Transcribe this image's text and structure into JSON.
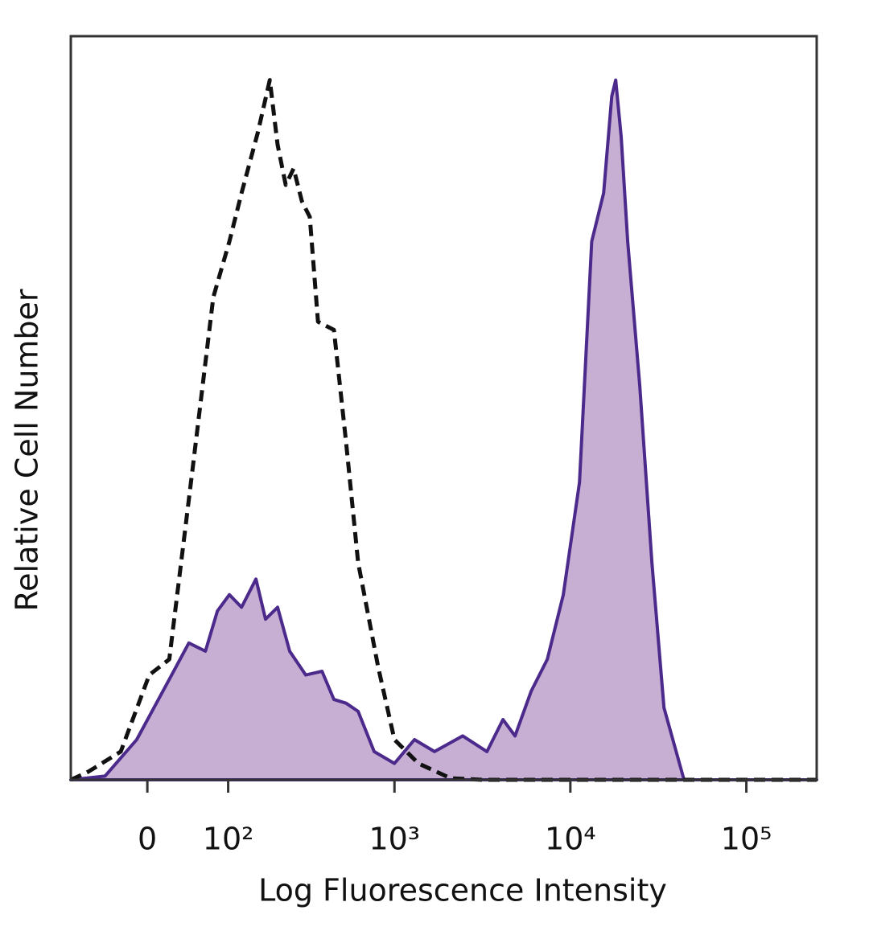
{
  "chart_data": {
    "type": "histogram-overlay",
    "x_label": "Log Fluorescence Intensity",
    "y_label": "Relative Cell Number",
    "xscale": "biexponential",
    "xlim": [
      -93,
      251000
    ],
    "ylim": [
      0,
      100
    ],
    "xticks": [
      0,
      {
        "value": 100,
        "label": "10²"
      },
      {
        "value": 1000,
        "label": "10³"
      },
      {
        "value": 10000,
        "label": "10⁴"
      },
      {
        "value": 100000,
        "label": "10⁵"
      }
    ],
    "series": [
      {
        "color": "#4b2a8c",
        "fill": "#c6afd3",
        "dash": false,
        "x": [
          -93,
          -46,
          -11,
          23,
          45,
          66,
          83,
          102,
          124,
          154,
          177,
          210,
          248,
          309,
          384,
          450,
          529,
          620,
          766,
          999,
          1300,
          1690,
          2447,
          3357,
          4140,
          4851,
          5988,
          7394,
          9117,
          11265,
          13225,
          15452,
          17183,
          18091,
          19434,
          21172,
          24806,
          29072,
          34049,
          44240,
          251000
        ],
        "values": [
          0,
          0.5,
          5.4,
          13.5,
          18.4,
          17.3,
          22.7,
          24.9,
          23.2,
          27.0,
          21.6,
          23.2,
          17.3,
          14.1,
          14.6,
          10.8,
          10.3,
          9.2,
          3.8,
          2.2,
          5.4,
          3.8,
          5.9,
          3.8,
          8.1,
          5.9,
          11.9,
          16.2,
          24.9,
          40.0,
          72.4,
          78.9,
          91.9,
          94.1,
          86.5,
          72.4,
          53.0,
          29.2,
          9.7,
          0,
          0
        ]
      },
      {
        "color": "#111111",
        "dash": true,
        "x": [
          -93,
          -67,
          -28,
          2,
          23,
          50,
          77,
          102,
          124,
          158,
          188,
          210,
          235,
          262,
          293,
          326,
          364,
          450,
          529,
          620,
          808,
          999,
          1369,
          2086,
          3183,
          251000
        ],
        "values": [
          0,
          1.1,
          3.8,
          14.1,
          16.2,
          42.2,
          64.9,
          72.4,
          78.9,
          87.0,
          94.1,
          85.4,
          80.0,
          82.2,
          77.8,
          75.7,
          61.6,
          60.5,
          45.4,
          29.2,
          15.1,
          5.4,
          2.2,
          0.2,
          0,
          0
        ]
      }
    ]
  }
}
